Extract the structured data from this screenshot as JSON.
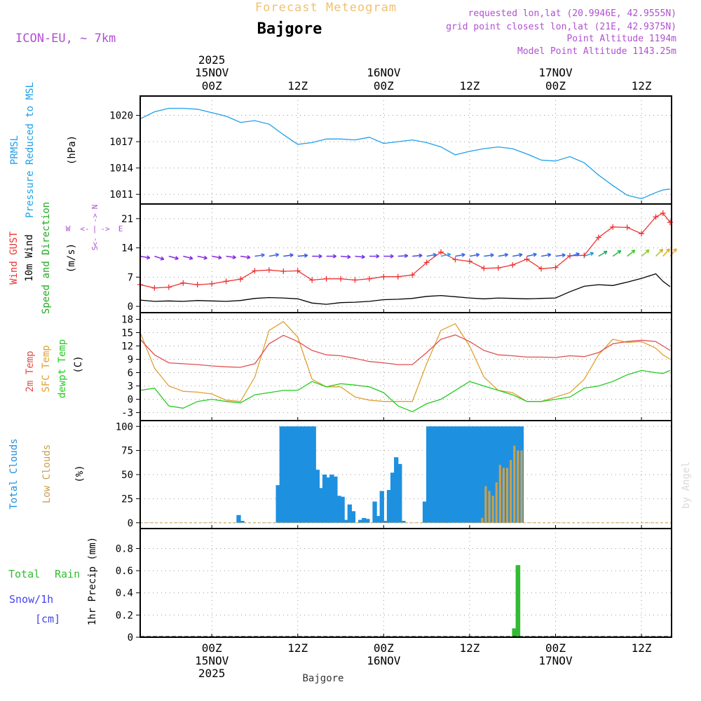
{
  "header": {
    "app_title": "Forecast Meteogram",
    "location": "Bajgore",
    "model": "ICON-EU, ~ 7km",
    "requested": "requested lon,lat (20.9946E, 42.9555N)",
    "grid_point": "grid point closest lon,lat (21E, 42.9375N)",
    "point_altitude": "Point Altitude 1194m",
    "model_altitude": "Model Point Altitude 1143.25m",
    "footer_location": "Bajgore",
    "watermark": "by Angel"
  },
  "colors": {
    "pressure": "#1ea0e8",
    "gust": "#ee3333",
    "wind": "#000000",
    "direction": "#22aa22",
    "temp2m": "#e05050",
    "sfctemp": "#e0a030",
    "dewpt": "#22cc22",
    "total_clouds": "#1e90e0",
    "low_clouds": "#c8a050",
    "rain": "#33bb33",
    "snow": "#4444ee",
    "violet": "#b050d0",
    "title_orange": "#f0c070"
  },
  "chart_data": [
    {
      "type": "line",
      "id": "pressure",
      "ylabels": [
        "PRMSL",
        "Pressure Reduced to MSL",
        "(hPa)"
      ],
      "yticks": [
        1011,
        1014,
        1017,
        1020
      ],
      "ylim": [
        1009.9,
        1022.2
      ],
      "x_hours": [
        -10,
        -8,
        -6,
        -4,
        -2,
        0,
        2,
        4,
        6,
        8,
        10,
        12,
        14,
        16,
        18,
        20,
        22,
        24,
        26,
        28,
        30,
        32,
        34,
        36,
        38,
        40,
        42,
        44,
        46,
        48,
        50,
        52,
        54,
        56,
        58,
        60,
        62,
        63,
        64
      ],
      "series": [
        {
          "name": "PRMSL",
          "values": [
            1019.6,
            1020.4,
            1020.8,
            1020.8,
            1020.7,
            1020.3,
            1019.9,
            1019.2,
            1019.4,
            1019.0,
            1017.8,
            1016.7,
            1016.9,
            1017.3,
            1017.3,
            1017.2,
            1017.5,
            1016.8,
            1017.0,
            1017.2,
            1016.9,
            1016.4,
            1015.5,
            1015.9,
            1016.2,
            1016.4,
            1016.2,
            1015.6,
            1014.9,
            1014.8,
            1015.3,
            1014.6,
            1013.2,
            1012.0,
            1010.9,
            1010.5,
            1011.2,
            1011.5,
            1011.6
          ]
        }
      ]
    },
    {
      "type": "line",
      "id": "wind",
      "ylabels": [
        "Wind GUST",
        "10m Wind",
        "Speed and Direction",
        "(m/s)"
      ],
      "compass": {
        "n": "N",
        "e": "E",
        "s": "S",
        "w": "W",
        "arrow_w": "<-",
        "arrow_e": "->"
      },
      "yticks": [
        0,
        7,
        14,
        21
      ],
      "ylim": [
        -1.5,
        24.5
      ],
      "x_hours": [
        -10,
        -8,
        -6,
        -4,
        -2,
        0,
        2,
        4,
        6,
        8,
        10,
        12,
        14,
        16,
        18,
        20,
        22,
        24,
        26,
        28,
        30,
        32,
        34,
        36,
        38,
        40,
        42,
        44,
        46,
        48,
        50,
        52,
        54,
        56,
        58,
        60,
        62,
        63,
        64
      ],
      "series": [
        {
          "name": "Wind GUST",
          "values": [
            5.2,
            4.4,
            4.6,
            5.6,
            5.2,
            5.4,
            6.0,
            6.5,
            8.5,
            8.7,
            8.4,
            8.5,
            6.3,
            6.6,
            6.6,
            6.3,
            6.6,
            7.1,
            7.1,
            7.5,
            10.5,
            13.0,
            11.2,
            10.8,
            9.1,
            9.2,
            9.9,
            11.3,
            9.0,
            9.3,
            12.1,
            12.2,
            16.5,
            19.0,
            18.9,
            17.4,
            21.4,
            22.3,
            20.1
          ]
        },
        {
          "name": "10m Wind",
          "values": [
            1.5,
            1.2,
            1.3,
            1.2,
            1.4,
            1.3,
            1.2,
            1.4,
            1.9,
            2.1,
            2.0,
            1.8,
            0.8,
            0.5,
            0.9,
            1.0,
            1.2,
            1.6,
            1.7,
            1.9,
            2.4,
            2.6,
            2.3,
            2.0,
            1.8,
            2.0,
            1.9,
            1.8,
            1.9,
            2.0,
            3.5,
            4.8,
            5.2,
            5.0,
            5.8,
            6.7,
            7.8,
            6.0,
            4.7
          ]
        }
      ],
      "direction_arrows": {
        "hours": [
          -10,
          -8,
          -6,
          -4,
          -2,
          0,
          2,
          4,
          6,
          8,
          10,
          12,
          14,
          16,
          18,
          20,
          22,
          24,
          26,
          28,
          30,
          32,
          34,
          36,
          38,
          40,
          42,
          44,
          46,
          48,
          50,
          52,
          54,
          56,
          58,
          60,
          62,
          63,
          64
        ],
        "angle_deg": [
          -10,
          -18,
          -15,
          -14,
          -12,
          -10,
          -8,
          -8,
          8,
          10,
          8,
          5,
          0,
          0,
          -5,
          -5,
          0,
          0,
          3,
          5,
          10,
          12,
          10,
          10,
          8,
          10,
          10,
          12,
          10,
          8,
          15,
          20,
          30,
          35,
          38,
          40,
          45,
          48,
          50
        ],
        "colors": [
          "#8a2be2",
          "#8a2be2",
          "#8a2be2",
          "#8a2be2",
          "#8a2be2",
          "#8a2be2",
          "#8a2be2",
          "#8a2be2",
          "#4466ee",
          "#4466ee",
          "#3355ee",
          "#3355ee",
          "#7733ee",
          "#7733ee",
          "#7733ee",
          "#7733ee",
          "#7733ee",
          "#7733ee",
          "#5544ee",
          "#5544ee",
          "#3377ee",
          "#22aaee",
          "#3366ee",
          "#3366ee",
          "#3366ee",
          "#3366ee",
          "#3366ee",
          "#3366ee",
          "#3366ee",
          "#3366ee",
          "#3366ee",
          "#2299dd",
          "#22aa66",
          "#22bb44",
          "#44cc22",
          "#88cc22",
          "#bbbb22",
          "#ddaa22",
          "#eeaa22"
        ]
      }
    },
    {
      "type": "line",
      "id": "temperature",
      "ylabels": [
        "2m Temp",
        "SFC Temp",
        "dewpt Temp",
        "(C)"
      ],
      "yticks": [
        -3,
        0,
        3,
        6,
        9,
        12,
        15,
        18
      ],
      "ylim": [
        -4.8,
        19.5
      ],
      "x_hours": [
        -10,
        -8,
        -6,
        -4,
        -2,
        0,
        2,
        4,
        6,
        8,
        10,
        12,
        14,
        16,
        18,
        20,
        22,
        24,
        26,
        28,
        30,
        32,
        34,
        36,
        38,
        40,
        42,
        44,
        46,
        48,
        50,
        52,
        54,
        56,
        58,
        60,
        62,
        63,
        64
      ],
      "series": [
        {
          "name": "2m Temp",
          "values": [
            13.5,
            10.0,
            8.2,
            8.0,
            7.8,
            7.5,
            7.3,
            7.2,
            8.0,
            12.5,
            14.4,
            13.0,
            11.0,
            10.0,
            9.8,
            9.2,
            8.5,
            8.2,
            7.8,
            7.8,
            10.5,
            13.5,
            14.5,
            13.0,
            11.0,
            10.0,
            9.8,
            9.5,
            9.5,
            9.4,
            9.8,
            9.6,
            10.5,
            12.5,
            13.0,
            13.3,
            13.0,
            12.0,
            11.0
          ]
        },
        {
          "name": "SFC Temp",
          "values": [
            15.0,
            7.0,
            3.0,
            1.8,
            1.6,
            1.2,
            -0.2,
            -0.5,
            5.0,
            15.5,
            17.5,
            14.0,
            4.5,
            2.8,
            2.8,
            0.5,
            -0.2,
            -0.5,
            -0.5,
            -0.5,
            8.0,
            15.5,
            17.0,
            12.0,
            5.0,
            2.0,
            1.5,
            -0.5,
            -0.5,
            0.5,
            1.5,
            4.5,
            10.0,
            13.5,
            12.8,
            13.0,
            11.5,
            10.0,
            9.0
          ]
        },
        {
          "name": "dewpt Temp",
          "values": [
            2.0,
            2.5,
            -1.5,
            -2.0,
            -0.5,
            0.0,
            -0.5,
            -0.8,
            1.0,
            1.5,
            2.0,
            2.0,
            4.0,
            2.8,
            3.5,
            3.2,
            2.8,
            1.5,
            -1.5,
            -2.8,
            -1.0,
            0.0,
            2.0,
            4.0,
            3.0,
            2.0,
            1.0,
            -0.5,
            -0.5,
            0.0,
            0.5,
            2.5,
            3.0,
            4.0,
            5.5,
            6.5,
            6.0,
            5.8,
            6.5
          ]
        }
      ]
    },
    {
      "type": "bar",
      "id": "clouds",
      "ylabels": [
        "Total Clouds",
        "Low Clouds",
        "(%)"
      ],
      "yticks": [
        0,
        25,
        50,
        75,
        100
      ],
      "ylim": [
        -6,
        106
      ],
      "hour_start": -10,
      "series": [
        {
          "name": "Total Clouds",
          "values": [
            0,
            0,
            0,
            0,
            0,
            0,
            0,
            0,
            0,
            0,
            0,
            0,
            0,
            0,
            0,
            0,
            0,
            0,
            0,
            0,
            0,
            0,
            0,
            0,
            0,
            0,
            0,
            8,
            2,
            0,
            0,
            0,
            0,
            0,
            0,
            0,
            0,
            0,
            39,
            100,
            100,
            100,
            100,
            100,
            100,
            100,
            100,
            100,
            100,
            55,
            36,
            50,
            47,
            50,
            48,
            28,
            27,
            3,
            19,
            12,
            0,
            3,
            5,
            4,
            0,
            22,
            7,
            33,
            2,
            34,
            52,
            68,
            61,
            2,
            0,
            0,
            0,
            0,
            0,
            22,
            100,
            100,
            100,
            100,
            100,
            100,
            100,
            100,
            100,
            100,
            100,
            100,
            100,
            100,
            100,
            100,
            100,
            100,
            100,
            100,
            100,
            100,
            100,
            100,
            100,
            100,
            100
          ]
        },
        {
          "name": "Low Clouds",
          "values": [
            0,
            0,
            0,
            0,
            0,
            0,
            0,
            0,
            0,
            0,
            0,
            0,
            0,
            0,
            0,
            0,
            0,
            0,
            0,
            0,
            0,
            0,
            0,
            0,
            0,
            0,
            0,
            0,
            0,
            0,
            0,
            0,
            0,
            0,
            0,
            0,
            0,
            0,
            0,
            0,
            0,
            0,
            0,
            0,
            0,
            0,
            0,
            0,
            0,
            0,
            0,
            0,
            0,
            0,
            0,
            0,
            0,
            0,
            0,
            0,
            0,
            0,
            0,
            0,
            0,
            0,
            0,
            0,
            0,
            0,
            0,
            0,
            0,
            0,
            0,
            0,
            0,
            0,
            0,
            0,
            0,
            0,
            0,
            0,
            0,
            0,
            0,
            0,
            0,
            0,
            0,
            0,
            0,
            0,
            0,
            5,
            38,
            33,
            28,
            42,
            60,
            57,
            57,
            65,
            80,
            75,
            75
          ]
        }
      ]
    },
    {
      "type": "bar",
      "id": "precip",
      "ylabels": [
        "Total",
        "Rain",
        "Snow/1h",
        "[cm]",
        "1hr Precip (mm)"
      ],
      "yticks": [
        0,
        0.2,
        0.4,
        0.6,
        0.8
      ],
      "ylim": [
        0,
        0.98
      ],
      "hour_start": -10,
      "series": [
        {
          "name": "Total Rain",
          "values": [
            0,
            0,
            0,
            0,
            0,
            0,
            0,
            0,
            0,
            0,
            0,
            0,
            0,
            0,
            0,
            0,
            0,
            0,
            0,
            0,
            0,
            0,
            0,
            0,
            0,
            0,
            0,
            0,
            0,
            0,
            0,
            0,
            0,
            0,
            0,
            0,
            0,
            0,
            0,
            0,
            0,
            0,
            0,
            0,
            0,
            0,
            0,
            0,
            0,
            0,
            0,
            0,
            0,
            0,
            0,
            0,
            0,
            0,
            0,
            0,
            0,
            0,
            0,
            0,
            0,
            0,
            0,
            0,
            0,
            0,
            0,
            0,
            0,
            0,
            0,
            0,
            0,
            0,
            0,
            0,
            0,
            0,
            0,
            0,
            0,
            0,
            0,
            0,
            0,
            0,
            0,
            0,
            0,
            0,
            0,
            0,
            0,
            0,
            0,
            0,
            0,
            0,
            0,
            0,
            0.08,
            0.65,
            0
          ]
        }
      ]
    }
  ],
  "time_axis": {
    "year": "2025",
    "top_ticks": [
      {
        "hour": 0,
        "label": "00Z",
        "date": "15NOV",
        "year": "2025"
      },
      {
        "hour": 12,
        "label": "12Z",
        "date": "",
        "year": ""
      },
      {
        "hour": 24,
        "label": "00Z",
        "date": "16NOV",
        "year": ""
      },
      {
        "hour": 36,
        "label": "12Z",
        "date": "",
        "year": ""
      },
      {
        "hour": 48,
        "label": "00Z",
        "date": "17NOV",
        "year": ""
      },
      {
        "hour": 60,
        "label": "12Z",
        "date": "",
        "year": ""
      }
    ],
    "bottom_ticks": [
      {
        "hour": 0,
        "label": "00Z",
        "date": "15NOV",
        "year": "2025"
      },
      {
        "hour": 12,
        "label": "12Z",
        "date": "",
        "year": ""
      },
      {
        "hour": 24,
        "label": "00Z",
        "date": "16NOV",
        "year": ""
      },
      {
        "hour": 36,
        "label": "12Z",
        "date": "",
        "year": ""
      },
      {
        "hour": 48,
        "label": "00Z",
        "date": "17NOV",
        "year": ""
      },
      {
        "hour": 60,
        "label": "12Z",
        "date": "",
        "year": ""
      }
    ]
  }
}
